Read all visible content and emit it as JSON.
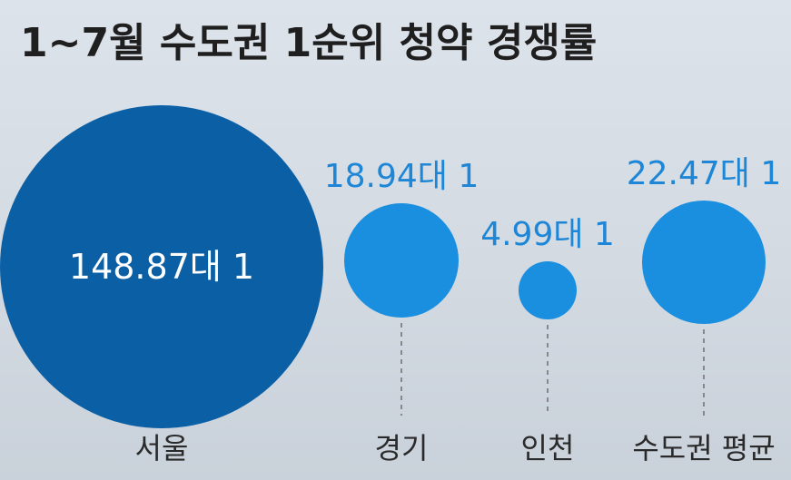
{
  "title": "1~7월 수도권 1순위 청약 경쟁률",
  "colors": {
    "primary": "#0b5fa5",
    "secondary": "#1a8fe0",
    "value_text": "#1d86d6"
  },
  "chart_data": {
    "type": "bubble",
    "title": "1~7월 수도권 1순위 청약 경쟁률",
    "categories": [
      "서울",
      "경기",
      "인천",
      "수도권 평균"
    ],
    "values": [
      148.87,
      18.94,
      4.99,
      22.47
    ],
    "labels": [
      "148.87대 1",
      "18.94대 1",
      "4.99대 1",
      "22.47대 1"
    ],
    "colors": [
      "#0b5fa5",
      "#1a8fe0",
      "#1a8fe0",
      "#1a8fe0"
    ]
  }
}
